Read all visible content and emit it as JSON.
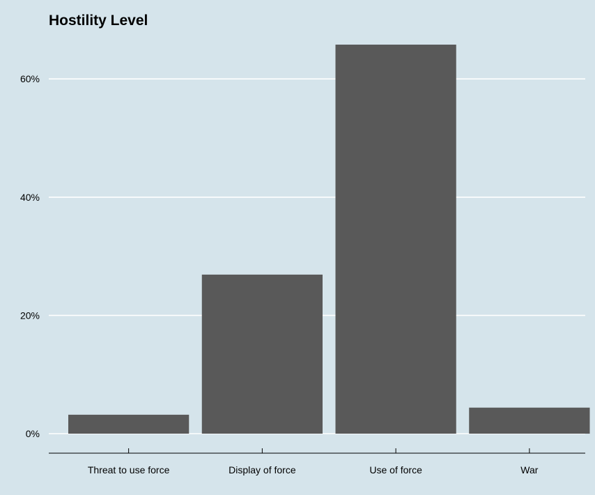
{
  "chart_data": {
    "type": "bar",
    "title": "Hostility Level",
    "xlabel": "",
    "ylabel": "",
    "categories": [
      "Threat to use force",
      "Display of force",
      "Use of force",
      "War"
    ],
    "values": [
      3.2,
      26.9,
      65.8,
      4.4
    ],
    "value_unit": "percent",
    "ylim": [
      0,
      66
    ],
    "yticks": [
      0,
      20,
      40,
      60
    ],
    "ytick_labels": [
      "0%",
      "20%",
      "40%",
      "60%"
    ],
    "grid": "horizontal-major",
    "legend": "none",
    "colors": {
      "background": "#d5e4eb",
      "bar": "#595959",
      "grid": "#ffffff",
      "axis": "#000000"
    }
  }
}
